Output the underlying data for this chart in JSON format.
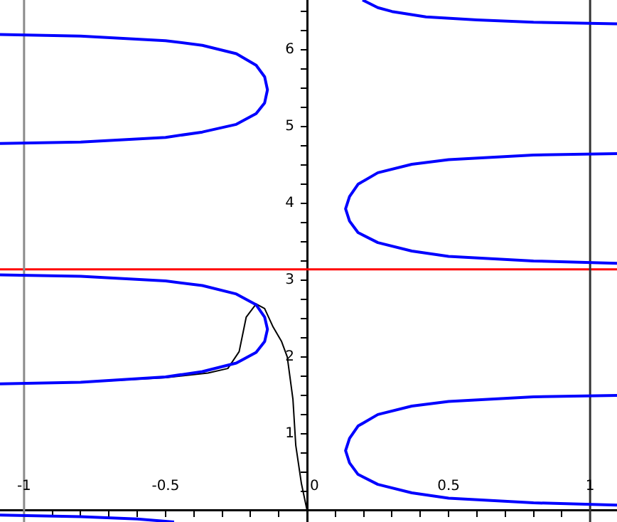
{
  "chart_data": {
    "type": "line",
    "marker": "none",
    "line_style": "solid",
    "legend": false,
    "grid": false,
    "xlim": [
      -1.085,
      1.095
    ],
    "ylim": [
      -0.15,
      6.65
    ],
    "xticks": [
      -1,
      {
        "value": -0.9,
        "label": null
      },
      {
        "value": -0.8,
        "label": null
      },
      {
        "value": -0.7,
        "label": null
      },
      {
        "value": -0.6,
        "label": null
      },
      -0.5,
      {
        "value": -0.4,
        "label": null
      },
      {
        "value": -0.3,
        "label": null
      },
      {
        "value": -0.2,
        "label": null
      },
      {
        "value": -0.1,
        "label": null
      },
      0,
      {
        "value": 0.1,
        "label": null
      },
      {
        "value": 0.2,
        "label": null
      },
      {
        "value": 0.3,
        "label": null
      },
      {
        "value": 0.4,
        "label": null
      },
      0.5,
      {
        "value": 0.6,
        "label": null
      },
      {
        "value": 0.7,
        "label": null
      },
      {
        "value": 0.8,
        "label": null
      },
      {
        "value": 0.9,
        "label": null
      },
      1
    ],
    "yticks": [
      {
        "value": 0.25,
        "label": null
      },
      {
        "value": 0.5,
        "label": null
      },
      {
        "value": 0.75,
        "label": null
      },
      1,
      {
        "value": 1.25,
        "label": null
      },
      {
        "value": 1.5,
        "label": null
      },
      {
        "value": 1.75,
        "label": null
      },
      2,
      {
        "value": 2.25,
        "label": null
      },
      {
        "value": 2.5,
        "label": null
      },
      {
        "value": 2.75,
        "label": null
      },
      3,
      {
        "value": 3.25,
        "label": null
      },
      {
        "value": 3.5,
        "label": null
      },
      {
        "value": 3.75,
        "label": null
      },
      4,
      {
        "value": 4.25,
        "label": null
      },
      {
        "value": 4.5,
        "label": null
      },
      {
        "value": 4.75,
        "label": null
      },
      5,
      {
        "value": 5.25,
        "label": null
      },
      {
        "value": 5.5,
        "label": null
      },
      {
        "value": 5.75,
        "label": null
      },
      6,
      {
        "value": 6.25,
        "label": null
      },
      {
        "value": 6.5,
        "label": null
      }
    ],
    "ref_lines": [
      {
        "axis": "y",
        "value": 3.14,
        "color": "#ff0000"
      },
      {
        "axis": "x",
        "value": -1,
        "color": "#8c8c8c"
      },
      {
        "axis": "x",
        "value": 1,
        "color": "#333333"
      }
    ],
    "series": [
      {
        "color": "#0000ff",
        "x": [
          -1.085,
          -0.8,
          -0.5,
          -0.37,
          -0.25,
          -0.18,
          -0.15,
          -0.14,
          -0.15,
          -0.18,
          -0.25,
          -0.37,
          -0.5,
          -0.8,
          -1.085
        ],
        "values": [
          6.2,
          6.18,
          6.12,
          6.06,
          5.95,
          5.8,
          5.65,
          5.48,
          5.31,
          5.17,
          5.03,
          4.93,
          4.86,
          4.8,
          4.78
        ]
      },
      {
        "color": "#0000ff",
        "x": [
          -1.085,
          -0.8,
          -0.5,
          -0.37,
          -0.25,
          -0.18,
          -0.15,
          -0.14,
          -0.15,
          -0.18,
          -0.25,
          -0.37,
          -0.5,
          -0.8,
          -1.085
        ],
        "values": [
          3.07,
          3.05,
          2.99,
          2.93,
          2.82,
          2.68,
          2.52,
          2.36,
          2.2,
          2.06,
          1.92,
          1.81,
          1.74,
          1.67,
          1.65
        ]
      },
      {
        "color": "#0000ff",
        "x": [
          -1.085,
          -0.8,
          -0.6,
          -0.47
        ],
        "values": [
          -0.06,
          -0.08,
          -0.11,
          -0.15
        ]
      },
      {
        "color": "#0000ff",
        "x": [
          0.196,
          0.25,
          0.3,
          0.42,
          0.6,
          0.8,
          1.095
        ],
        "values": [
          6.65,
          6.55,
          6.5,
          6.43,
          6.39,
          6.36,
          6.34
        ]
      },
      {
        "color": "#0000ff",
        "x": [
          1.095,
          0.8,
          0.5,
          0.37,
          0.25,
          0.18,
          0.15,
          0.136,
          0.15,
          0.18,
          0.25,
          0.37,
          0.5,
          0.8,
          1.095
        ],
        "values": [
          4.65,
          4.63,
          4.57,
          4.51,
          4.4,
          4.25,
          4.09,
          3.93,
          3.77,
          3.62,
          3.49,
          3.38,
          3.31,
          3.25,
          3.22
        ]
      },
      {
        "color": "#0000ff",
        "x": [
          1.095,
          0.8,
          0.5,
          0.37,
          0.25,
          0.18,
          0.15,
          0.136,
          0.15,
          0.18,
          0.25,
          0.37,
          0.5,
          0.8,
          1.095
        ],
        "values": [
          1.5,
          1.48,
          1.42,
          1.36,
          1.25,
          1.1,
          0.94,
          0.78,
          0.62,
          0.47,
          0.34,
          0.23,
          0.16,
          0.1,
          0.07
        ]
      },
      {
        "color": "#000000",
        "x": [
          -1.085,
          -0.8,
          -0.5,
          -0.35,
          -0.28,
          -0.24,
          -0.215,
          -0.18,
          -0.15,
          -0.12,
          -0.09,
          -0.07,
          -0.05,
          -0.04,
          -0.02,
          0
        ],
        "values": [
          1.65,
          1.67,
          1.73,
          1.79,
          1.85,
          2.07,
          2.52,
          2.69,
          2.63,
          2.39,
          2.2,
          2.0,
          1.45,
          0.85,
          0.35,
          0
        ]
      }
    ]
  }
}
